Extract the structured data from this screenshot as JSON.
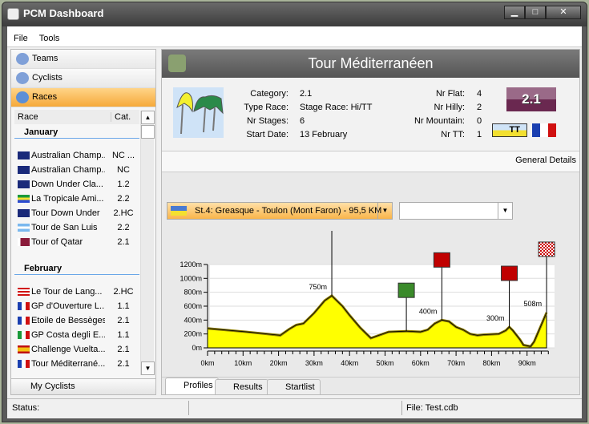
{
  "window": {
    "title": "PCM Dashboard",
    "min": "▁",
    "max": "□",
    "close": "✕"
  },
  "menu": [
    "File",
    "Tools"
  ],
  "nav": [
    {
      "label": "Teams"
    },
    {
      "label": "Cyclists"
    },
    {
      "label": "Races",
      "selected": true
    }
  ],
  "list": {
    "col_race": "Race",
    "col_cat": "Cat.",
    "months": [
      {
        "name": "January",
        "races": [
          {
            "name": "Australian Champ...",
            "cat": "NC ...",
            "flag": "australia"
          },
          {
            "name": "Australian Champ...",
            "cat": "NC",
            "flag": "australia"
          },
          {
            "name": "Down Under Cla...",
            "cat": "1.2",
            "flag": "australia"
          },
          {
            "name": "La Tropicale Ami...",
            "cat": "2.2",
            "flag": "gabon"
          },
          {
            "name": "Tour Down Under",
            "cat": "2.HC",
            "flag": "australia"
          },
          {
            "name": "Tour de San Luis",
            "cat": "2.2",
            "flag": "argentina"
          },
          {
            "name": "Tour of Qatar",
            "cat": "2.1",
            "flag": "qatar"
          }
        ]
      },
      {
        "name": "February",
        "races": [
          {
            "name": "Le Tour de Lang...",
            "cat": "2.HC",
            "flag": "malaysia"
          },
          {
            "name": "GP d'Ouverture L...",
            "cat": "1.1",
            "flag": "france"
          },
          {
            "name": "Etoile de Bessèges",
            "cat": "2.1",
            "flag": "france"
          },
          {
            "name": "GP Costa degli E...",
            "cat": "1.1",
            "flag": "italy"
          },
          {
            "name": "Challenge Vuelta...",
            "cat": "2.1",
            "flag": "spain"
          },
          {
            "name": "Tour Méditerrané...",
            "cat": "2.1",
            "flag": "france"
          }
        ]
      }
    ]
  },
  "my_cyclists": "My Cyclists",
  "race": {
    "title": "Tour Méditerranéen",
    "fields": [
      {
        "label": "Category:",
        "value": "2.1"
      },
      {
        "label": "Type Race:",
        "value": "Stage Race: Hi/TT"
      },
      {
        "label": "Nr Stages:",
        "value": "6"
      },
      {
        "label": "Start Date:",
        "value": "13 February"
      }
    ],
    "counts": [
      {
        "label": "Nr Flat:",
        "value": "4"
      },
      {
        "label": "Nr Hilly:",
        "value": "2"
      },
      {
        "label": "Nr Mountain:",
        "value": "0"
      },
      {
        "label": "Nr TT:",
        "value": "1"
      }
    ],
    "badge": "2.1",
    "tt_badge": "TT",
    "general_details": "General  Details",
    "stage_select": "St.4: Greasque - Toulon (Mont Faron) - 95,5 KM"
  },
  "chart_data": {
    "type": "area",
    "ylim": [
      0,
      1200
    ],
    "xlim": [
      0,
      95.5
    ],
    "yticks": [
      "0m",
      "200m",
      "400m",
      "600m",
      "800m",
      "1000m",
      "1200m"
    ],
    "xticks": [
      "0km",
      "10km",
      "20km",
      "30km",
      "40km",
      "50km",
      "60km",
      "70km",
      "80km",
      "90km"
    ],
    "profile": [
      [
        0,
        280
      ],
      [
        11,
        230
      ],
      [
        20.5,
        180
      ],
      [
        23,
        270
      ],
      [
        25,
        330
      ],
      [
        27,
        350
      ],
      [
        30,
        500
      ],
      [
        33,
        680
      ],
      [
        35,
        750
      ],
      [
        38,
        600
      ],
      [
        40,
        470
      ],
      [
        43,
        290
      ],
      [
        46,
        140
      ],
      [
        51,
        230
      ],
      [
        56,
        240
      ],
      [
        60,
        230
      ],
      [
        62,
        260
      ],
      [
        64,
        350
      ],
      [
        66,
        400
      ],
      [
        68,
        380
      ],
      [
        70,
        300
      ],
      [
        72,
        260
      ],
      [
        74,
        200
      ],
      [
        76,
        180
      ],
      [
        78,
        190
      ],
      [
        82,
        200
      ],
      [
        84,
        250
      ],
      [
        85,
        300
      ],
      [
        86,
        250
      ],
      [
        88,
        120
      ],
      [
        89,
        40
      ],
      [
        91,
        20
      ],
      [
        92,
        90
      ],
      [
        95.5,
        508
      ]
    ],
    "markers": [
      {
        "km": 35,
        "alt": 750,
        "label": "750m",
        "type": "climb",
        "color": "#c00000"
      },
      {
        "km": 56,
        "alt": 240,
        "label": "",
        "type": "sprint",
        "color": "#3a8a2a"
      },
      {
        "km": 66,
        "alt": 400,
        "label": "400m",
        "type": "climb",
        "color": "#c00000"
      },
      {
        "km": 85,
        "alt": 300,
        "label": "300m",
        "type": "climb",
        "color": "#c00000"
      },
      {
        "km": 95.5,
        "alt": 508,
        "label": "508m",
        "type": "finish",
        "color": "#cc0000"
      }
    ],
    "fill": "#ffff00"
  },
  "tabs": [
    {
      "label": "Profiles",
      "selected": true
    },
    {
      "label": "Results"
    },
    {
      "label": "Startlist"
    }
  ],
  "status": {
    "label": "Status:",
    "file": "File: Test.cdb"
  }
}
